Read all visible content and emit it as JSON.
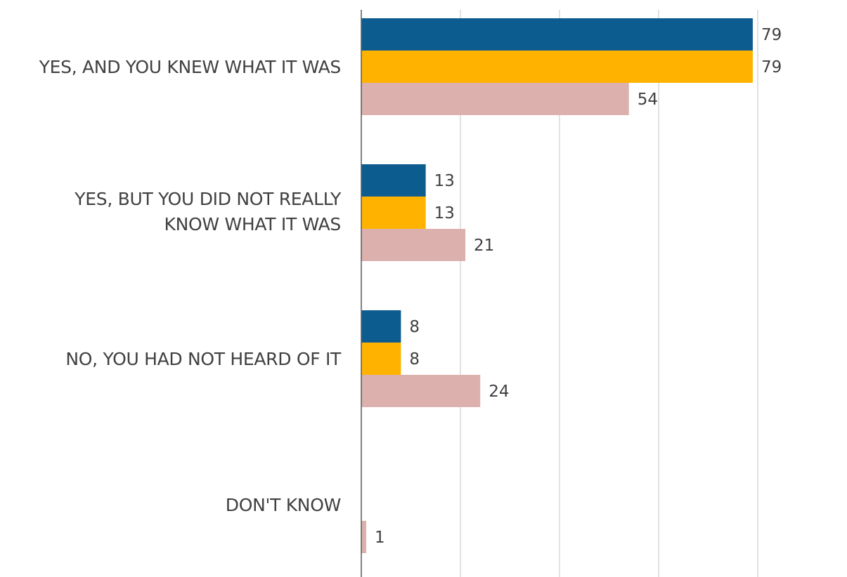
{
  "chart_data": {
    "type": "bar",
    "orientation": "horizontal",
    "categories": [
      "YES, AND YOU KNEW WHAT IT WAS",
      "YES, BUT YOU DID NOT REALLY\nKNOW WHAT IT WAS",
      "NO, YOU HAD NOT HEARD OF IT",
      "DON'T KNOW"
    ],
    "series": [
      {
        "color": "#0d5c8f",
        "values": [
          79,
          13,
          8,
          null
        ]
      },
      {
        "color": "#ffb300",
        "values": [
          79,
          13,
          8,
          null
        ]
      },
      {
        "color": "#dbb0ad",
        "values": [
          54,
          21,
          24,
          1
        ]
      }
    ],
    "xlim": [
      0,
      100
    ],
    "grid": true,
    "legend": "none",
    "gridline_color": "#d9d9d9",
    "axis_color": "#595959"
  }
}
